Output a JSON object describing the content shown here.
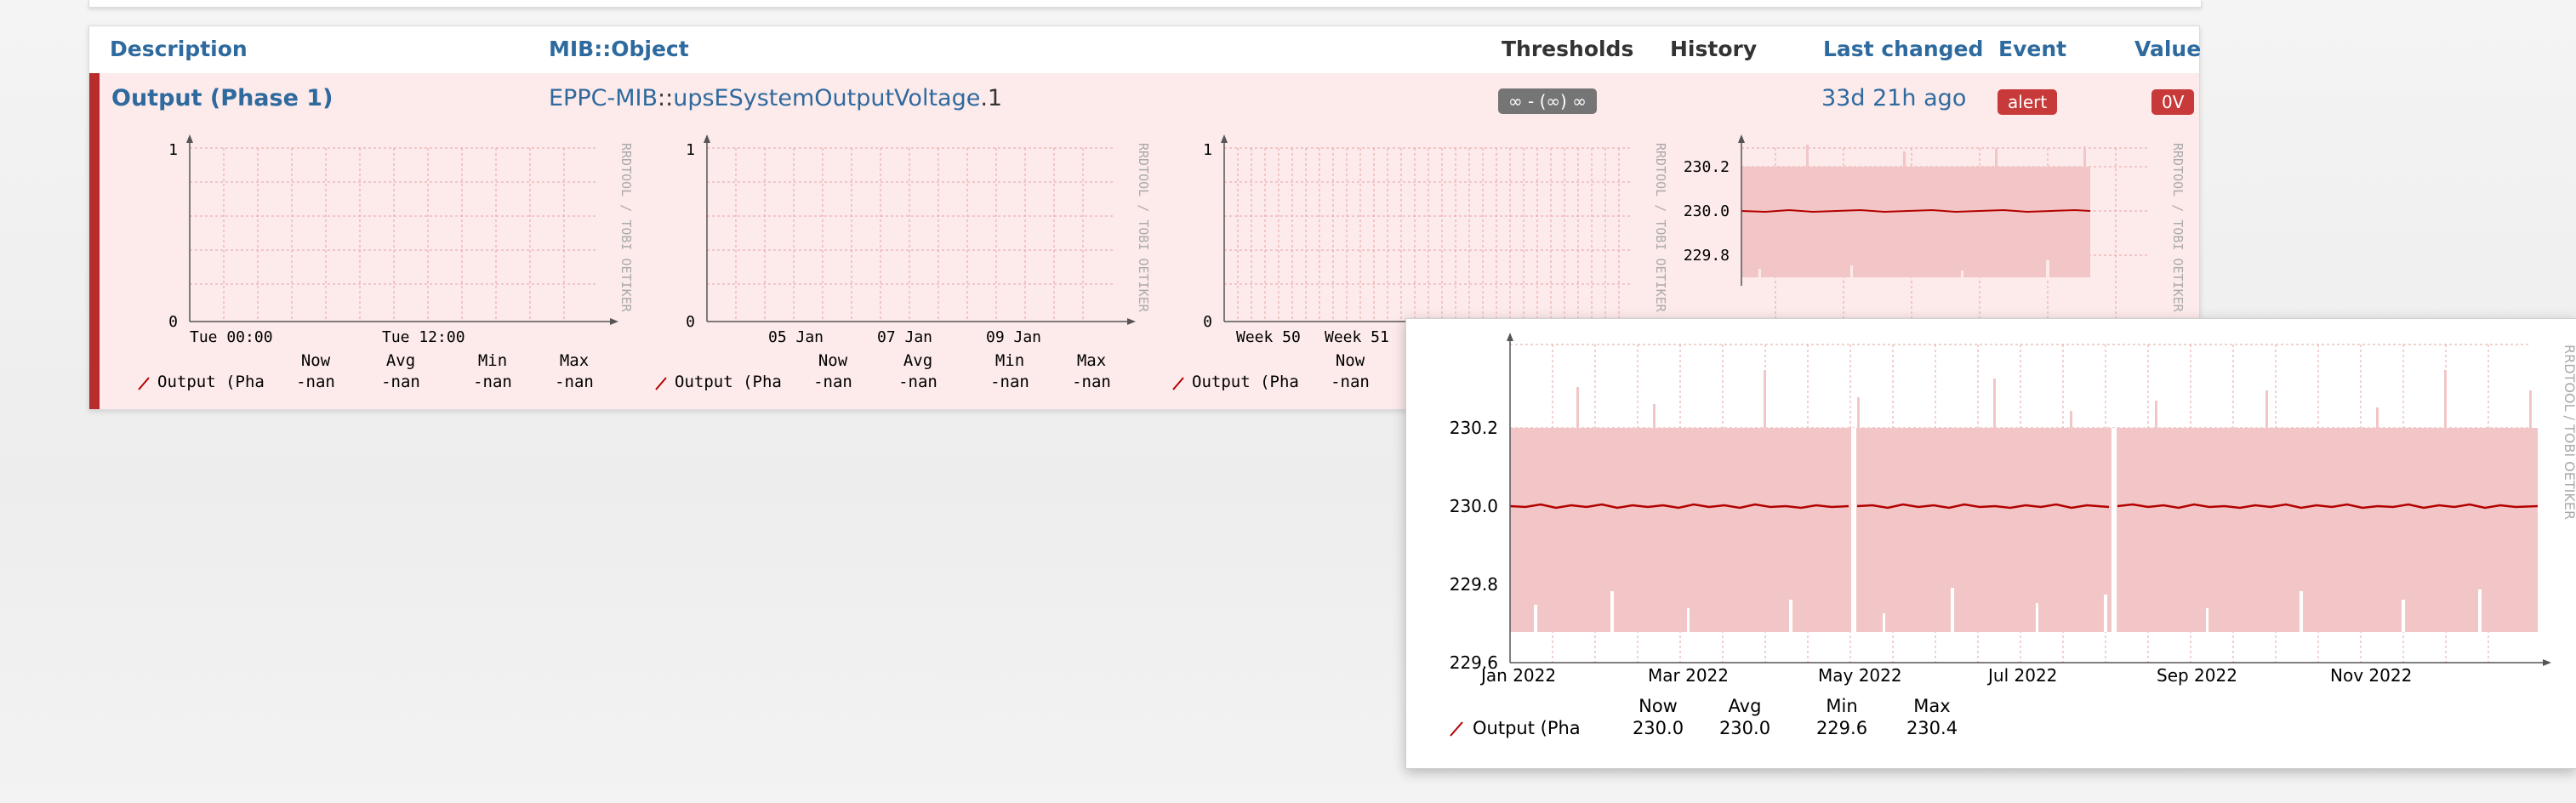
{
  "table": {
    "headers": {
      "description": "Description",
      "mib_object": "MIB::Object",
      "thresholds": "Thresholds",
      "history": "History",
      "last_changed": "Last changed",
      "event": "Event",
      "value": "Value"
    },
    "row": {
      "description": "Output (Phase 1)",
      "mib_prefix": "EPPC-MIB",
      "mib_sep": "::",
      "mib_object": "upsESystemOutputVoltage",
      "mib_index": ".1",
      "thresholds": "∞ - (∞) ∞",
      "last_changed": "33d 21h ago",
      "event": "alert",
      "value": "0V"
    }
  },
  "graph_common": {
    "watermark": "RRDTOOL / TOBI OETIKER",
    "legend_label": "Output (Pha",
    "stats_headers": [
      "Now",
      "Avg",
      "Min",
      "Max"
    ],
    "nan_value": "-nan"
  },
  "graphs": [
    {
      "id": "day",
      "x_labels": [
        "Tue 00:00",
        "Tue 12:00"
      ],
      "y_labels": [
        "1",
        "0"
      ]
    },
    {
      "id": "week",
      "x_labels": [
        "05 Jan",
        "07 Jan",
        "09 Jan"
      ],
      "y_labels": [
        "1",
        "0"
      ]
    },
    {
      "id": "month",
      "x_labels": [
        "Week 50",
        "Week 51"
      ],
      "y_labels": [
        "1",
        "0"
      ]
    },
    {
      "id": "year",
      "y_labels": [
        "230.2",
        "230.0",
        "229.8"
      ]
    }
  ],
  "popup_graph": {
    "x_labels": [
      "Jan 2022",
      "Mar 2022",
      "May 2022",
      "Jul 2022",
      "Sep 2022",
      "Nov 2022"
    ],
    "y_labels": [
      "230.2",
      "230.0",
      "229.8",
      "229.6"
    ],
    "stats": {
      "now": "230.0",
      "avg": "230.0",
      "min": "229.6",
      "max": "230.4"
    }
  },
  "colors": {
    "row_bg": "#fdeaea",
    "row_accent": "#b92c2c",
    "link": "#2e6a9e",
    "area_fill": "#f2c6c6",
    "line": "#b30000"
  }
}
